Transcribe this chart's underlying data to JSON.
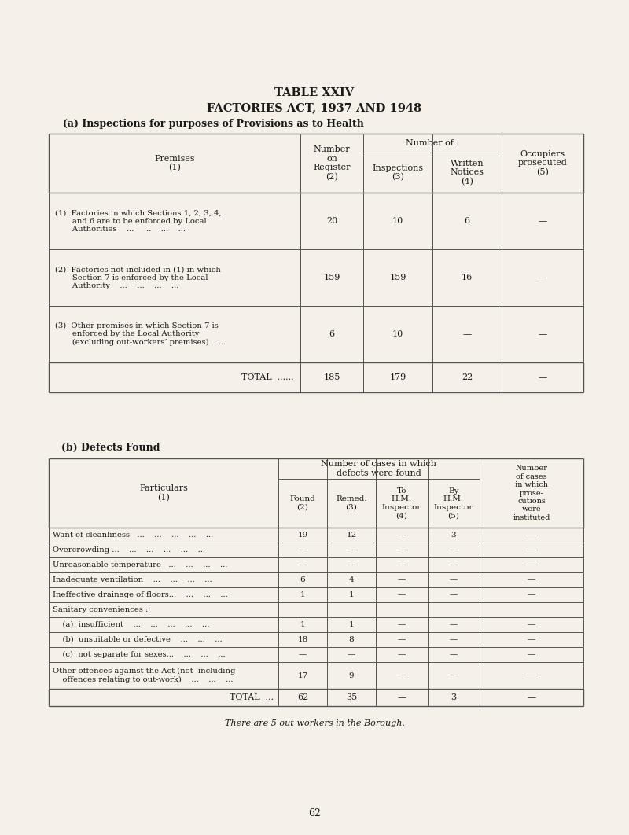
{
  "bg_color": "#f5f0e8",
  "title1": "TABLE XXIV",
  "title2": "FACTORIES ACT, 1937 AND 1948",
  "section_a_title": "(a) Inspections for purposes of Provisions as to Health",
  "section_b_title": "(b) Defects Found",
  "footer": "There are 5 out-workers in the Borough.",
  "page_num": "62",
  "table_a": {
    "rows": [
      {
        "label": "(1)  Factories in which Sections 1, 2, 3, 4,\n       and 6 are to be enforced by Local\n       Authorities    ...    ...    ...    ...",
        "vals": [
          "20",
          "10",
          "6",
          "—"
        ]
      },
      {
        "label": "(2)  Factories not included in (1) in which\n       Section 7 is enforced by the Local\n       Authority    ...    ...    ...    ...",
        "vals": [
          "159",
          "159",
          "16",
          "—"
        ]
      },
      {
        "label": "(3)  Other premises in which Section 7 is\n       enforced by the Local Authority\n       (excluding out-workers’ premises)    ...",
        "vals": [
          "6",
          "10",
          "—",
          "—"
        ]
      }
    ],
    "total_row": [
      "TOTAL  ......",
      "185",
      "179",
      "22",
      "—"
    ]
  },
  "table_b": {
    "rows": [
      {
        "label": "Want of cleanliness   ...    ...    ...    ...    ...",
        "vals": [
          "19",
          "12",
          "—",
          "3",
          "—"
        ]
      },
      {
        "label": "Overcrowding ...    ...    ...    ...    ...    ...",
        "vals": [
          "—",
          "—",
          "—",
          "—",
          "—"
        ]
      },
      {
        "label": "Unreasonable temperature   ...    ...    ...    ...",
        "vals": [
          "—",
          "—",
          "—",
          "—",
          "—"
        ]
      },
      {
        "label": "Inadequate ventilation    ...    ...    ...    ...",
        "vals": [
          "6",
          "4",
          "—",
          "—",
          "—"
        ]
      },
      {
        "label": "Ineffective drainage of floors...    ...    ...    ...",
        "vals": [
          "1",
          "1",
          "—",
          "—",
          "—"
        ]
      },
      {
        "label": "Sanitary conveniences :",
        "vals": [
          "",
          "",
          "",
          "",
          ""
        ]
      },
      {
        "label": "    (a)  insufficient    ...    ...    ...    ...    ...",
        "vals": [
          "1",
          "1",
          "—",
          "—",
          "—"
        ]
      },
      {
        "label": "    (b)  unsuitable or defective    ...    ...    ...",
        "vals": [
          "18",
          "8",
          "—",
          "—",
          "—"
        ]
      },
      {
        "label": "    (c)  not separate for sexes...    ...    ...    ...",
        "vals": [
          "—",
          "—",
          "—",
          "—",
          "—"
        ]
      },
      {
        "label": "Other offences against the Act (not  including\n    offences relating to out-work)    ...    ...    ...",
        "vals": [
          "17",
          "9",
          "—",
          "—",
          "—"
        ]
      }
    ],
    "total_row": [
      "TOTAL  ...",
      "62",
      "35",
      "—",
      "3",
      "—"
    ]
  }
}
